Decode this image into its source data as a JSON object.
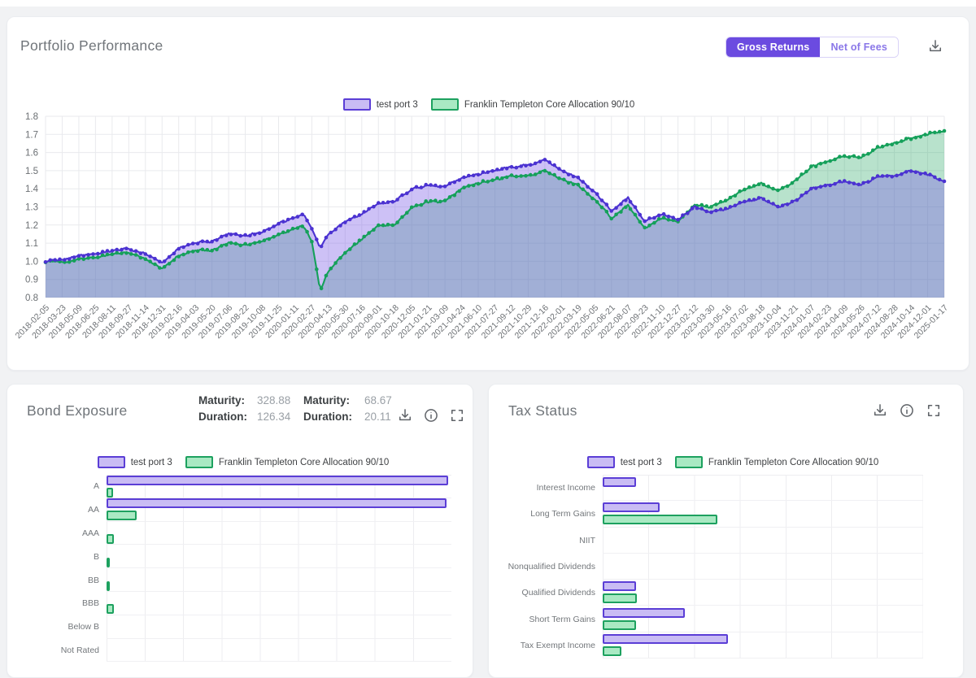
{
  "performance_panel": {
    "title": "Portfolio Performance",
    "toggle": {
      "active_label": "Gross Returns",
      "inactive_label": "Net of Fees"
    },
    "download_icon": "download-icon",
    "chart_data": {
      "type": "line",
      "title": "",
      "xlabel": "",
      "ylabel": "",
      "ylim": [
        0.8,
        1.8
      ],
      "yticks": [
        "0.8",
        "0.9",
        "1.0",
        "1.1",
        "1.2",
        "1.3",
        "1.4",
        "1.5",
        "1.6",
        "1.7",
        "1.8"
      ],
      "grid": true,
      "legend_position": "top-center",
      "xtick_rotation": -45,
      "x": [
        "2018-02-05",
        "2018-03-23",
        "2018-05-09",
        "2018-06-25",
        "2018-08-11",
        "2018-09-27",
        "2018-11-14",
        "2018-12-31",
        "2019-02-16",
        "2019-04-03",
        "2019-05-20",
        "2019-07-06",
        "2019-08-22",
        "2019-10-08",
        "2019-11-25",
        "2020-01-11",
        "2020-02-27",
        "2020-04-13",
        "2020-05-30",
        "2020-07-16",
        "2020-09-01",
        "2020-10-18",
        "2020-12-05",
        "2021-01-21",
        "2021-03-09",
        "2021-04-24",
        "2021-06-10",
        "2021-07-27",
        "2021-09-12",
        "2021-10-29",
        "2021-12-16",
        "2022-02-01",
        "2022-03-19",
        "2022-05-05",
        "2022-06-21",
        "2022-08-07",
        "2022-09-23",
        "2022-11-10",
        "2022-12-27",
        "2023-02-12",
        "2023-03-30",
        "2023-05-16",
        "2023-07-02",
        "2023-08-18",
        "2023-10-04",
        "2023-11-21",
        "2024-01-07",
        "2024-02-23",
        "2024-04-09",
        "2024-05-26",
        "2024-07-12",
        "2024-08-28",
        "2024-10-14",
        "2024-12-01",
        "2025-01-17"
      ],
      "series": [
        {
          "name": "test port 3",
          "line_color": "#4b32d1",
          "fill_color": "rgba(124,93,231,0.38)",
          "swatch_fill": "#c9bcf4",
          "swatch_border": "#5b3ed6",
          "values": [
            1.0,
            1.01,
            1.03,
            1.04,
            1.06,
            1.07,
            1.04,
            0.99,
            1.07,
            1.1,
            1.11,
            1.15,
            1.14,
            1.16,
            1.21,
            1.24,
            1.18,
            1.15,
            1.22,
            1.26,
            1.32,
            1.33,
            1.4,
            1.42,
            1.41,
            1.46,
            1.48,
            1.5,
            1.52,
            1.53,
            1.56,
            1.5,
            1.46,
            1.38,
            1.28,
            1.35,
            1.22,
            1.26,
            1.23,
            1.3,
            1.27,
            1.29,
            1.33,
            1.35,
            1.3,
            1.33,
            1.4,
            1.42,
            1.44,
            1.42,
            1.47,
            1.47,
            1.5,
            1.48,
            1.44
          ]
        },
        {
          "name": "Franklin Templeton Core Allocation 90/10",
          "line_color": "#15a05a",
          "fill_color": "rgba(40,167,100,0.33)",
          "swatch_fill": "#a9e9c3",
          "swatch_border": "#1da15f",
          "values": [
            1.0,
            0.995,
            1.01,
            1.02,
            1.04,
            1.05,
            1.01,
            0.96,
            1.03,
            1.06,
            1.06,
            1.1,
            1.09,
            1.11,
            1.15,
            1.18,
            1.11,
            0.95,
            1.05,
            1.12,
            1.2,
            1.2,
            1.3,
            1.33,
            1.33,
            1.4,
            1.43,
            1.45,
            1.47,
            1.47,
            1.5,
            1.45,
            1.42,
            1.34,
            1.24,
            1.31,
            1.18,
            1.24,
            1.22,
            1.31,
            1.3,
            1.34,
            1.4,
            1.43,
            1.39,
            1.44,
            1.52,
            1.55,
            1.58,
            1.57,
            1.63,
            1.65,
            1.68,
            1.7,
            1.72
          ]
        }
      ],
      "extra_points": [
        {
          "t": 15.5,
          "values": [
            1.26,
            1.195
          ]
        },
        {
          "t": 16.5,
          "values": [
            1.07,
            0.835
          ]
        }
      ]
    }
  },
  "bond_panel": {
    "title": "Bond Exposure",
    "stats": [
      {
        "label": "Maturity:",
        "value": "328.88"
      },
      {
        "label": "Maturity:",
        "value": "68.67"
      },
      {
        "label": "Duration:",
        "value": "126.34"
      },
      {
        "label": "Duration:",
        "value": "20.11"
      }
    ],
    "icons": [
      "download-icon",
      "info-icon",
      "fullscreen-icon"
    ],
    "chart_data": {
      "type": "bar",
      "orientation": "horizontal",
      "title": "",
      "xlabel": "",
      "ylabel": "",
      "xlim": [
        0,
        100
      ],
      "grid": true,
      "legend_position": "top-center",
      "categories": [
        "A",
        "AA",
        "AAA",
        "B",
        "BB",
        "BBB",
        "Below B",
        "Not Rated"
      ],
      "series": [
        {
          "name": "test port 3",
          "swatch_fill": "#c9bcf4",
          "swatch_border": "#5b3ed6",
          "values": [
            99,
            98.5,
            0,
            0,
            0,
            0,
            0,
            0
          ]
        },
        {
          "name": "Franklin Templeton Core Allocation 90/10",
          "swatch_fill": "#a9e9c3",
          "swatch_border": "#1da15f",
          "values": [
            1.8,
            8.7,
            2.2,
            0.3,
            0.7,
            2.1,
            0,
            0
          ]
        }
      ]
    }
  },
  "tax_panel": {
    "title": "Tax Status",
    "icons": [
      "download-icon",
      "info-icon",
      "fullscreen-icon"
    ],
    "chart_data": {
      "type": "bar",
      "orientation": "horizontal",
      "title": "",
      "xlabel": "",
      "ylabel": "",
      "xlim": [
        0,
        7
      ],
      "grid": true,
      "legend_position": "top-center",
      "categories": [
        "Interest Income",
        "Long Term Gains",
        "NIIT",
        "Nonqualified Dividends",
        "Qualified Dividends",
        "Short Term Gains",
        "Tax Exempt Income"
      ],
      "series": [
        {
          "name": "test port 3",
          "swatch_fill": "#c9bcf4",
          "swatch_border": "#5b3ed6",
          "values": [
            0.73,
            1.25,
            0,
            0,
            0.72,
            1.79,
            2.73
          ]
        },
        {
          "name": "Franklin Templeton Core Allocation 90/10",
          "swatch_fill": "#a9e9c3",
          "swatch_border": "#1da15f",
          "values": [
            0,
            2.5,
            0,
            0,
            0.75,
            0.72,
            0.4
          ]
        }
      ]
    }
  },
  "colors": {
    "page_background": "#f1f2f4",
    "accent_purple": "#6b4be0",
    "line_purple": "#4b32d1",
    "line_green": "#15a05a",
    "grid": "#e9eaed",
    "title_grey": "#70757a"
  }
}
